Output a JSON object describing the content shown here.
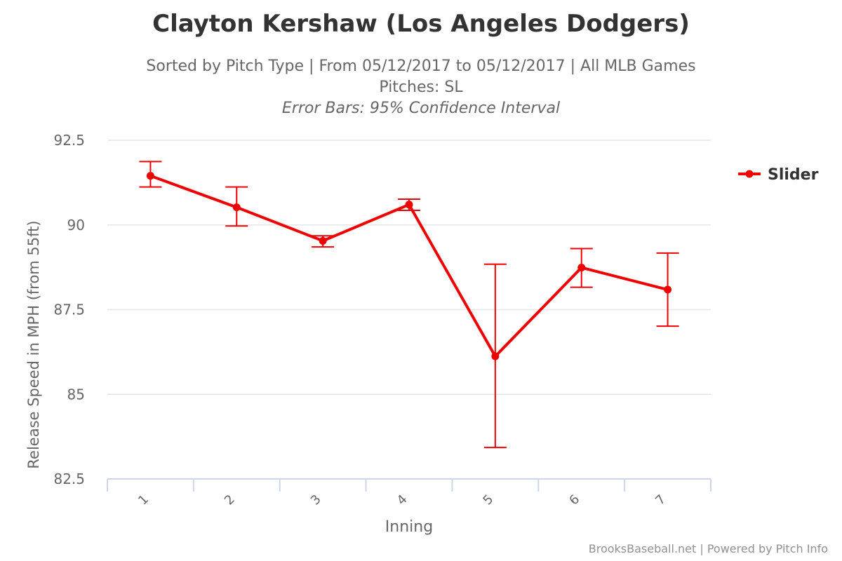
{
  "chart_data": {
    "type": "line",
    "title": "Clayton Kershaw (Los Angeles Dodgers)",
    "subtitle_lines": [
      "Sorted by Pitch Type | From 05/12/2017 to 05/12/2017 | All MLB Games",
      "Pitches: SL"
    ],
    "error_note": "Error Bars: 95% Confidence Interval",
    "xlabel": "Inning",
    "ylabel": "Release Speed in MPH (from 55ft)",
    "categories": [
      "1",
      "2",
      "3",
      "4",
      "5",
      "6",
      "7"
    ],
    "ylim": [
      82.5,
      92.5
    ],
    "yticks": [
      "82.5",
      "85",
      "87.5",
      "90",
      "92.5"
    ],
    "grid": true,
    "legend_position": "right",
    "series": [
      {
        "name": "Slider",
        "color": "#ee0000",
        "values": [
          91.45,
          90.52,
          89.53,
          90.6,
          86.12,
          88.74,
          88.09
        ],
        "error_low": [
          91.12,
          89.97,
          89.35,
          90.43,
          83.43,
          88.16,
          87.01
        ],
        "error_high": [
          91.87,
          91.12,
          89.68,
          90.76,
          88.84,
          89.3,
          89.17
        ]
      }
    ],
    "credit": "BrooksBaseball.net | Powered by Pitch Info"
  }
}
